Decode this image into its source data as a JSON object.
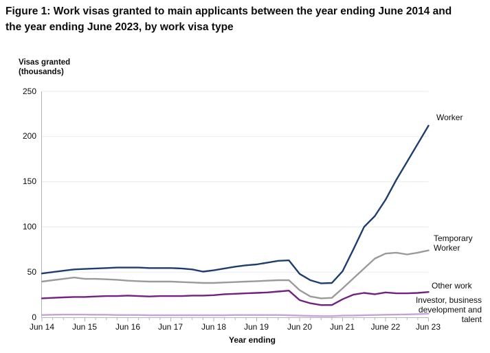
{
  "figure": {
    "title": "Figure 1: Work visas granted to main applicants between the year ending June 2014 and the year ending June 2023, by work visa type"
  },
  "chart_data": {
    "type": "line",
    "title": "Figure 1: Work visas granted to main applicants between the year ending June 2014 and the year ending June 2023, by work visa type",
    "y_axis_label": "Visas granted\n(thousands)",
    "x_axis_label": "Year ending",
    "ylim": [
      0,
      250
    ],
    "y_ticks": [
      0,
      50,
      100,
      150,
      200,
      250
    ],
    "grid": "horizontal-light",
    "x_tick_labels": [
      "Jun 14",
      "Jun 15",
      "Jun 16",
      "Jun 17",
      "Jun 18",
      "Jun 19",
      "Jun 20",
      "Jun 21",
      "June 22",
      "Jun 23"
    ],
    "x": [
      "Jun 14",
      "Sep 14",
      "Dec 14",
      "Mar 15",
      "Jun 15",
      "Sep 15",
      "Dec 15",
      "Mar 16",
      "Jun 16",
      "Sep 16",
      "Dec 16",
      "Mar 17",
      "Jun 17",
      "Sep 17",
      "Dec 17",
      "Mar 18",
      "Jun 18",
      "Sep 18",
      "Dec 18",
      "Mar 19",
      "Jun 19",
      "Sep 19",
      "Dec 19",
      "Mar 20",
      "Jun 20",
      "Sep 20",
      "Dec 20",
      "Mar 21",
      "Jun 21",
      "Sep 21",
      "Dec 21",
      "Mar 22",
      "Jun 22",
      "Sep 22",
      "Dec 22",
      "Mar 23",
      "Jun 23"
    ],
    "series": [
      {
        "name": "Worker",
        "label": "Worker",
        "color": "#1d3d70",
        "values": [
          48.5,
          50,
          51.5,
          53,
          53.5,
          54,
          54.5,
          55,
          55,
          55,
          54.5,
          54.5,
          54.5,
          54,
          53,
          50.5,
          52,
          54,
          56,
          57.5,
          58.5,
          60.5,
          62.5,
          63,
          48,
          41,
          37.5,
          38,
          51,
          75,
          100,
          112,
          130,
          152,
          172,
          192,
          212
        ]
      },
      {
        "name": "Temporary Worker",
        "label": "Temporary Worker",
        "color": "#9a9a9a",
        "values": [
          39.5,
          41,
          42.5,
          44,
          42.5,
          42.5,
          42,
          41.5,
          40.5,
          40,
          39.5,
          39.5,
          39.5,
          39,
          38.5,
          38,
          38,
          38.5,
          39,
          39.5,
          40,
          40.5,
          41,
          41,
          30,
          23,
          21,
          21.5,
          32,
          43,
          54,
          65,
          70.5,
          71.5,
          69.5,
          71.5,
          74
        ]
      },
      {
        "name": "Other work",
        "label": "Other work",
        "color": "#722082",
        "values": [
          21,
          21.5,
          22,
          22.5,
          22.5,
          23,
          23.5,
          23.5,
          24,
          23.5,
          23,
          23.5,
          23.5,
          23.5,
          24,
          24,
          24.5,
          25.5,
          26,
          26.5,
          27,
          27.5,
          28.5,
          29.5,
          19,
          15.5,
          13.5,
          13.5,
          20,
          25,
          27,
          25.5,
          27.5,
          26.5,
          26.5,
          27,
          28
        ]
      },
      {
        "name": "Investor, business development and talent",
        "label": "Investor, business development and talent",
        "color": "#c9a0d9",
        "values": [
          2.5,
          2.8,
          3,
          3,
          3,
          2.8,
          2.8,
          2.5,
          2.5,
          2.5,
          2.3,
          2.3,
          2.3,
          2.3,
          2.3,
          2.3,
          2.3,
          2.3,
          2.5,
          2.5,
          2.5,
          2.5,
          2.5,
          2.3,
          1.8,
          1.5,
          1.3,
          1.3,
          1.8,
          2,
          2.3,
          2.5,
          2.8,
          3,
          3.2,
          3.5,
          4
        ]
      }
    ],
    "axis_color": "#b1b4b6",
    "gridline_color": "#ebebeb"
  }
}
